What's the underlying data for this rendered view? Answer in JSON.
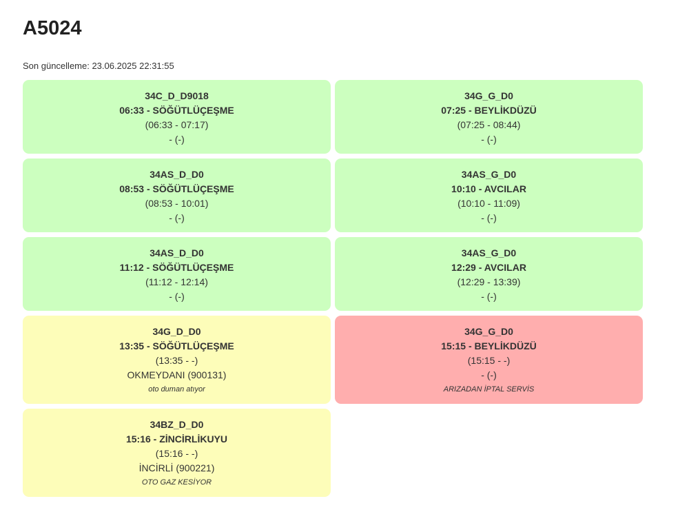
{
  "page": {
    "title": "A5024",
    "last_updated": "Son güncelleme: 23.06.2025 22:31:55"
  },
  "colors": {
    "ok": "#ccffbf",
    "warning": "#fdfdb9",
    "error": "#ffaeae"
  },
  "cards": [
    {
      "code": "34C_D_D9018",
      "time_dest": "06:33 - SÖĞÜTLÜÇEŞME",
      "range": "(06:33 - 07:17)",
      "location": "- (-)",
      "note": "",
      "status": "ok"
    },
    {
      "code": "34G_G_D0",
      "time_dest": "07:25 - BEYLİKDÜZÜ",
      "range": "(07:25 - 08:44)",
      "location": "- (-)",
      "note": "",
      "status": "ok"
    },
    {
      "code": "34AS_D_D0",
      "time_dest": "08:53 - SÖĞÜTLÜÇEŞME",
      "range": "(08:53 - 10:01)",
      "location": "- (-)",
      "note": "",
      "status": "ok"
    },
    {
      "code": "34AS_G_D0",
      "time_dest": "10:10 - AVCILAR",
      "range": "(10:10 - 11:09)",
      "location": "- (-)",
      "note": "",
      "status": "ok"
    },
    {
      "code": "34AS_D_D0",
      "time_dest": "11:12 - SÖĞÜTLÜÇEŞME",
      "range": "(11:12 - 12:14)",
      "location": "- (-)",
      "note": "",
      "status": "ok"
    },
    {
      "code": "34AS_G_D0",
      "time_dest": "12:29 - AVCILAR",
      "range": "(12:29 - 13:39)",
      "location": "- (-)",
      "note": "",
      "status": "ok"
    },
    {
      "code": "34G_D_D0",
      "time_dest": "13:35 - SÖĞÜTLÜÇEŞME",
      "range": "(13:35 - -)",
      "location": "OKMEYDANI (900131)",
      "note": "oto duman atıyor",
      "status": "warning"
    },
    {
      "code": "34G_G_D0",
      "time_dest": "15:15 - BEYLİKDÜZÜ",
      "range": "(15:15 - -)",
      "location": "- (-)",
      "note": "ARIZADAN İPTAL SERVİS",
      "status": "error"
    },
    {
      "code": "34BZ_D_D0",
      "time_dest": "15:16 - ZİNCİRLİKUYU",
      "range": "(15:16 - -)",
      "location": "İNCİRLİ (900221)",
      "note": "OTO GAZ KESİYOR",
      "status": "warning"
    }
  ]
}
